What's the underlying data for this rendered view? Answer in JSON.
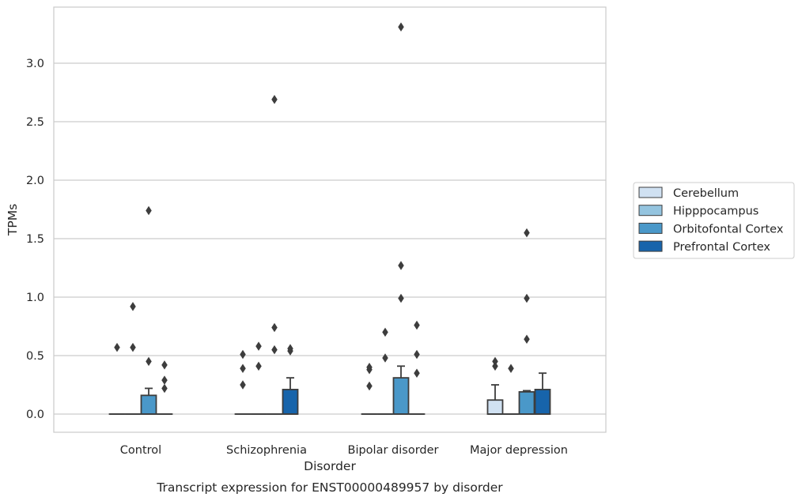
{
  "chart_data": {
    "type": "box",
    "title": "",
    "caption": "Transcript expression for ENST00000489957 by disorder",
    "xlabel": "Disorder",
    "ylabel": "TPMs",
    "ylim": [
      -0.16,
      3.48
    ],
    "yticks": [
      "0.0",
      "0.5",
      "1.0",
      "1.5",
      "2.0",
      "2.5",
      "3.0"
    ],
    "ytick_values": [
      0,
      0.5,
      1.0,
      1.5,
      2.0,
      2.5,
      3.0
    ],
    "grid": true,
    "legend_position": "right",
    "categories": [
      "Control",
      "Schizophrenia",
      "Bipolar disorder",
      "Major depression"
    ],
    "series": [
      {
        "name": "Cerebellum",
        "color": "#d0e1f2",
        "boxes": [
          {
            "q1": 0,
            "median": 0,
            "q3": 0,
            "whislo": 0,
            "whishi": 0,
            "fliers": [
              0.57
            ]
          },
          {
            "q1": 0,
            "median": 0,
            "q3": 0,
            "whislo": 0,
            "whishi": 0,
            "fliers": [
              0.25,
              0.39,
              0.51
            ]
          },
          {
            "q1": 0,
            "median": 0,
            "q3": 0,
            "whislo": 0,
            "whishi": 0,
            "fliers": [
              0.24,
              0.38,
              0.4
            ]
          },
          {
            "q1": 0,
            "median": 0,
            "q3": 0.12,
            "whislo": 0,
            "whishi": 0.25,
            "fliers": [
              0.41,
              0.45
            ]
          }
        ]
      },
      {
        "name": "Hipppocampus",
        "color": "#94c4df",
        "boxes": [
          {
            "q1": 0,
            "median": 0,
            "q3": 0,
            "whislo": 0,
            "whishi": 0,
            "fliers": [
              0.57,
              0.92
            ]
          },
          {
            "q1": 0,
            "median": 0,
            "q3": 0,
            "whislo": 0,
            "whishi": 0,
            "fliers": [
              0.41,
              0.58
            ]
          },
          {
            "q1": 0,
            "median": 0,
            "q3": 0,
            "whislo": 0,
            "whishi": 0,
            "fliers": [
              0.48,
              0.7
            ]
          },
          {
            "q1": 0,
            "median": 0,
            "q3": 0,
            "whislo": 0,
            "whishi": 0,
            "fliers": [
              0.39
            ]
          }
        ]
      },
      {
        "name": "Orbitofontal Cortex",
        "color": "#4a98c9",
        "boxes": [
          {
            "q1": 0,
            "median": 0,
            "q3": 0.16,
            "whislo": 0,
            "whishi": 0.22,
            "fliers": [
              0.45,
              1.74
            ]
          },
          {
            "q1": 0,
            "median": 0,
            "q3": 0,
            "whislo": 0,
            "whishi": 0,
            "fliers": [
              0.55,
              0.74,
              2.69
            ]
          },
          {
            "q1": 0,
            "median": 0,
            "q3": 0.31,
            "whislo": 0,
            "whishi": 0.41,
            "fliers": [
              0.99,
              1.27,
              3.31
            ]
          },
          {
            "q1": 0,
            "median": 0,
            "q3": 0.19,
            "whislo": 0,
            "whishi": 0.2,
            "fliers": [
              0.64,
              0.99,
              1.55
            ]
          }
        ]
      },
      {
        "name": "Prefrontal Cortex",
        "color": "#1764ab",
        "boxes": [
          {
            "q1": 0,
            "median": 0,
            "q3": 0,
            "whislo": 0,
            "whishi": 0,
            "fliers": [
              0.22,
              0.29,
              0.42
            ]
          },
          {
            "q1": 0,
            "median": 0,
            "q3": 0.21,
            "whislo": 0,
            "whishi": 0.31,
            "fliers": [
              0.54,
              0.56
            ]
          },
          {
            "q1": 0,
            "median": 0,
            "q3": 0,
            "whislo": 0,
            "whishi": 0,
            "fliers": [
              0.35,
              0.51,
              0.76
            ]
          },
          {
            "q1": 0,
            "median": 0,
            "q3": 0.21,
            "whislo": 0,
            "whishi": 0.35,
            "fliers": []
          }
        ]
      }
    ]
  }
}
